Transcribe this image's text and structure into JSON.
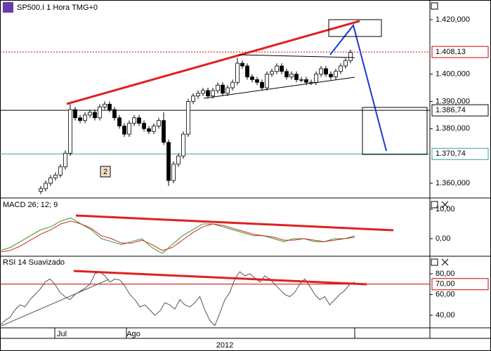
{
  "chart_data": [
    {
      "type": "candlestick",
      "title": "SP500.I 1 Hora TMG+0",
      "open": [
        1357,
        1358,
        1360,
        1362,
        1363,
        1366,
        1371,
        1387,
        1384,
        1383,
        1385,
        1386,
        1384,
        1388,
        1389,
        1387,
        1384,
        1381,
        1378,
        1382,
        1384,
        1382,
        1380,
        1379,
        1381,
        1383,
        1375,
        1361,
        1367,
        1370,
        1378,
        1390,
        1392,
        1393,
        1394,
        1392,
        1394,
        1396,
        1393,
        1395,
        1397,
        1404,
        1403,
        1399,
        1398,
        1397,
        1395,
        1400,
        1401,
        1403,
        1401,
        1399,
        1400,
        1398,
        1398,
        1397,
        1397,
        1400,
        1402,
        1400,
        1399,
        1401,
        1403,
        1405
      ],
      "high": [
        1359,
        1361,
        1363,
        1364,
        1367,
        1372,
        1389,
        1388,
        1385,
        1386,
        1387,
        1387,
        1389,
        1390,
        1390,
        1388,
        1385,
        1382,
        1383,
        1385,
        1385,
        1383,
        1381,
        1382,
        1384,
        1386,
        1376,
        1368,
        1371,
        1379,
        1391,
        1393,
        1394,
        1395,
        1395,
        1395,
        1397,
        1397,
        1396,
        1398,
        1406,
        1405,
        1404,
        1400,
        1399,
        1398,
        1401,
        1402,
        1404,
        1404,
        1402,
        1401,
        1401,
        1399,
        1399,
        1398,
        1401,
        1403,
        1403,
        1401,
        1402,
        1404,
        1406,
        1409
      ],
      "low": [
        1356,
        1357,
        1359,
        1361,
        1362,
        1365,
        1370,
        1383,
        1382,
        1382,
        1384,
        1383,
        1383,
        1387,
        1386,
        1383,
        1380,
        1377,
        1377,
        1381,
        1381,
        1379,
        1378,
        1378,
        1380,
        1374,
        1359,
        1360,
        1366,
        1369,
        1377,
        1389,
        1391,
        1392,
        1391,
        1391,
        1393,
        1392,
        1392,
        1394,
        1396,
        1402,
        1398,
        1397,
        1396,
        1394,
        1394,
        1399,
        1400,
        1400,
        1398,
        1398,
        1397,
        1397,
        1396,
        1396,
        1396,
        1399,
        1399,
        1398,
        1398,
        1400,
        1402,
        1404
      ],
      "close": [
        1358,
        1360,
        1362,
        1363,
        1366,
        1371,
        1387,
        1384,
        1383,
        1385,
        1386,
        1384,
        1388,
        1389,
        1387,
        1384,
        1381,
        1378,
        1382,
        1384,
        1382,
        1380,
        1379,
        1381,
        1383,
        1375,
        1361,
        1367,
        1370,
        1378,
        1390,
        1392,
        1393,
        1394,
        1392,
        1394,
        1396,
        1393,
        1395,
        1397,
        1404,
        1403,
        1399,
        1398,
        1397,
        1395,
        1400,
        1401,
        1403,
        1401,
        1399,
        1400,
        1398,
        1398,
        1397,
        1397,
        1400,
        1402,
        1400,
        1399,
        1401,
        1403,
        1405,
        1408
      ],
      "up_color": "#ffffff",
      "down_color": "#000000",
      "ylim": [
        1354.6,
        1427.2
      ],
      "yticks": [
        {
          "value": 1360,
          "label": "1.360,000"
        },
        {
          "value": 1380,
          "label": "1.380,000"
        },
        {
          "value": 1390,
          "label": "1.390,000"
        },
        {
          "value": 1400,
          "label": "1.400,000"
        },
        {
          "value": 1420,
          "label": "1.420,000"
        }
      ],
      "hlines": [
        {
          "value": 1408.13,
          "label": "1.408,13",
          "color": "#cc0000",
          "dashed": true
        },
        {
          "value": 1386.74,
          "label": "1.386,74",
          "color": "#000000",
          "dashed": false
        },
        {
          "value": 1370.74,
          "label": "1.370,74",
          "color": "#3aa0a0",
          "dashed": false
        }
      ],
      "annotation": "2"
    },
    {
      "type": "line",
      "title": "MACD 26; 12; 9",
      "title_color": "#2a8a2a",
      "series": [
        {
          "color": "#2a9a2a",
          "values": [
            -4,
            -3,
            -1,
            1,
            3,
            4,
            6,
            7,
            5,
            3,
            0,
            -1,
            -2,
            -1,
            0,
            -3,
            -5,
            -2,
            1,
            3,
            5,
            5,
            4,
            3,
            2,
            1,
            1,
            0,
            -1,
            0,
            0,
            -1,
            -1,
            0,
            0,
            1
          ]
        },
        {
          "color": "#d62020",
          "values": [
            -4.5,
            -4,
            -2.5,
            -0.5,
            1.5,
            3,
            5,
            6,
            5,
            3.5,
            1,
            0,
            -1.5,
            -1.5,
            -0.5,
            -2,
            -4,
            -3,
            -0.5,
            2,
            4,
            5,
            4.5,
            3.5,
            2.5,
            1.5,
            1,
            0.5,
            -0.5,
            -0.5,
            0,
            -0.5,
            -1,
            -0.5,
            0,
            0.5
          ]
        }
      ],
      "ylim": [
        -5.95,
        13.57
      ],
      "yticks": [
        {
          "value": 0,
          "label": "0,00"
        },
        {
          "value": 10,
          "label": "10,00"
        }
      ]
    },
    {
      "type": "line",
      "title": "RSI 14 Suavizado",
      "series": [
        {
          "color": "#555555",
          "values": [
            30,
            35,
            38,
            45,
            50,
            48,
            55,
            60,
            65,
            72,
            75,
            70,
            62,
            58,
            55,
            60,
            63,
            66,
            70,
            80,
            82,
            78,
            72,
            75,
            74,
            68,
            60,
            55,
            48,
            50,
            45,
            40,
            44,
            52,
            50,
            46,
            55,
            50,
            48,
            52,
            58,
            45,
            35,
            30,
            42,
            55,
            62,
            75,
            82,
            78,
            80,
            76,
            72,
            78,
            75,
            70,
            65,
            60,
            58,
            62,
            70,
            75,
            68,
            60,
            55,
            58,
            50,
            55,
            60,
            64,
            70,
            72
          ]
        }
      ],
      "ylim": [
        27.8,
        96.3
      ],
      "yticks": [
        {
          "value": 40,
          "label": "40,00"
        },
        {
          "value": 60,
          "label": "60,00"
        },
        {
          "value": 80,
          "label": "80,00"
        }
      ],
      "hlines": [
        {
          "value": 70,
          "label": "70,00",
          "color": "#cc0000",
          "dashed": false
        }
      ]
    }
  ],
  "time_axis": {
    "months": [
      "Jul",
      "Ago"
    ],
    "year": "2012"
  }
}
